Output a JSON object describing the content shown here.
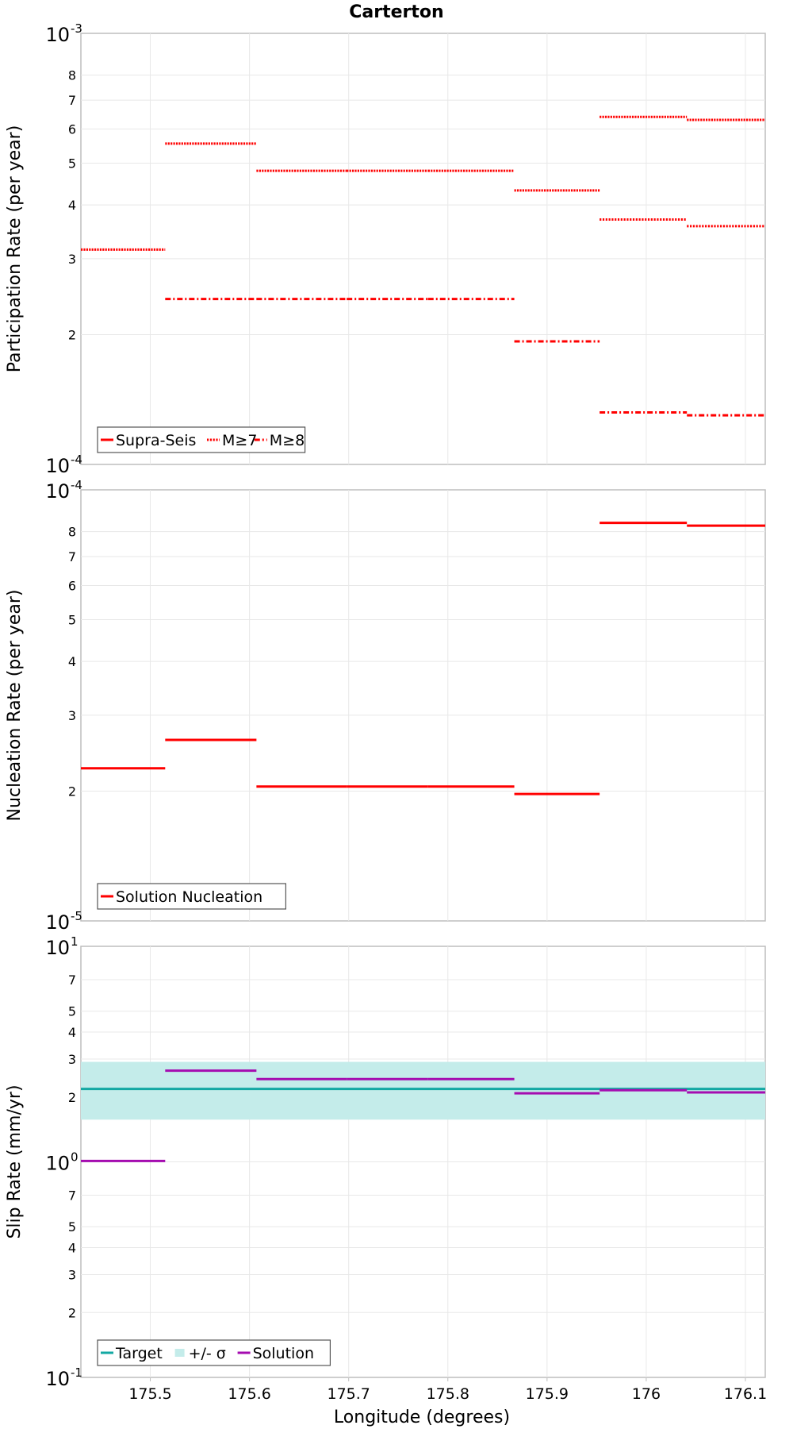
{
  "colors": {
    "red": "#ff0000",
    "teal": "#13a8a3",
    "band": "#c4ecea",
    "purple": "#a50cb0",
    "grid": "#e8e8e8",
    "frame": "#bdbdbd"
  },
  "chart_data": {
    "title": "Carterton",
    "xlabel": "Longitude (degrees)",
    "xlim": [
      175.43,
      176.12
    ],
    "x_ticks": [
      175.5,
      175.6,
      175.7,
      175.8,
      175.9,
      176,
      176.1
    ],
    "x_tick_labels": [
      "175.5",
      "175.6",
      "175.7",
      "175.8",
      "175.9",
      "176",
      "176.1"
    ],
    "segment_boundaries": [
      175.43,
      175.515,
      175.607,
      175.698,
      175.78,
      175.867,
      175.953,
      176.041,
      176.12
    ],
    "panels": [
      {
        "type": "line",
        "scale": "log",
        "ylabel": "Participation Rate (per year)",
        "ylim": [
          0.0001,
          0.001
        ],
        "decade_labels": [
          {
            "value": 0.001,
            "base": "10",
            "exp": "-3"
          },
          {
            "value": 0.0001,
            "base": "10",
            "exp": "-4"
          }
        ],
        "minor_tick_labels": [
          "8",
          "7",
          "6",
          "5",
          "4",
          "3",
          "2"
        ],
        "minor_tick_values": [
          0.0008,
          0.0007,
          0.0006,
          0.0005,
          0.0004,
          0.0003,
          0.0002
        ],
        "series": [
          {
            "name": "Supra-Seis",
            "style": "solid-dotted",
            "values": [
              0.000315,
              0.000555,
              0.00048,
              0.00048,
              0.00048,
              0.000432,
              0.00064,
              0.00063
            ]
          },
          {
            "name": "M≥7",
            "style": "dotted",
            "values": [
              null,
              null,
              null,
              null,
              null,
              null,
              0.00037,
              0.000357
            ]
          },
          {
            "name": "M≥8",
            "style": "dashdot",
            "values": [
              null,
              0.000242,
              0.000242,
              0.000242,
              0.000242,
              0.000193,
              0.000132,
              0.00013
            ]
          }
        ],
        "legend": [
          "Supra-Seis",
          "M≥7",
          "M≥8"
        ]
      },
      {
        "type": "line",
        "scale": "log",
        "ylabel": "Nucleation Rate (per year)",
        "ylim": [
          1e-05,
          0.0001
        ],
        "decade_labels": [
          {
            "value": 0.0001,
            "base": "10",
            "exp": "-4"
          },
          {
            "value": 1e-05,
            "base": "10",
            "exp": "-5"
          }
        ],
        "minor_tick_labels": [
          "8",
          "7",
          "6",
          "5",
          "4",
          "3",
          "2"
        ],
        "minor_tick_values": [
          8e-05,
          7e-05,
          6e-05,
          5e-05,
          4e-05,
          3e-05,
          2e-05
        ],
        "series": [
          {
            "name": "Solution Nucleation",
            "style": "solid",
            "values": [
              2.26e-05,
              2.63e-05,
              2.05e-05,
              2.05e-05,
              2.05e-05,
              1.97e-05,
              8.38e-05,
              8.26e-05
            ]
          }
        ],
        "legend": [
          "Solution Nucleation"
        ]
      },
      {
        "type": "line",
        "scale": "log",
        "ylabel": "Slip Rate (mm/yr)",
        "ylim": [
          0.1,
          10
        ],
        "decade_labels": [
          {
            "value": 10,
            "base": "10",
            "exp": "1"
          },
          {
            "value": 1,
            "base": "10",
            "exp": "0"
          },
          {
            "value": 0.1,
            "base": "10",
            "exp": "-1"
          }
        ],
        "minor_tick_labels": [
          "7",
          "5",
          "4",
          "3",
          "2",
          "7",
          "5",
          "4",
          "3",
          "2"
        ],
        "minor_tick_values": [
          7,
          5,
          4,
          3,
          2,
          0.7,
          0.5,
          0.4,
          0.3,
          0.2
        ],
        "target": {
          "name": "Target",
          "value": 2.18
        },
        "band": {
          "name": "+/- σ",
          "low": 1.57,
          "high": 2.91
        },
        "series": [
          {
            "name": "Solution",
            "style": "solid",
            "values": [
              1.01,
              2.65,
              2.42,
              2.42,
              2.42,
              2.08,
              2.15,
              2.1
            ]
          }
        ],
        "legend": [
          "Target",
          "+/- σ",
          "Solution"
        ]
      }
    ]
  }
}
